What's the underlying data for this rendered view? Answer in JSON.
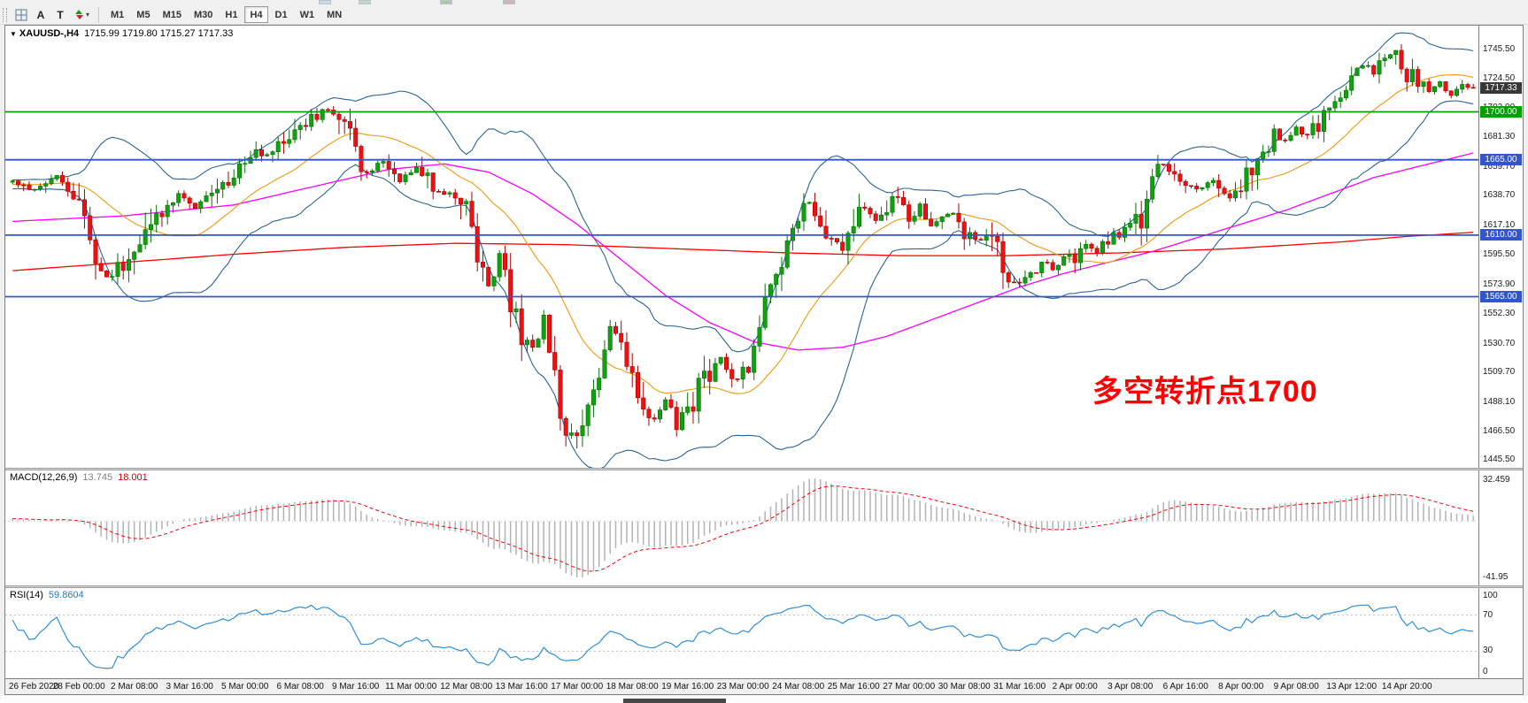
{
  "toolbar": {
    "text_label_glyph": "A",
    "text_tool_glyph": "T",
    "dropdown_caret": "▾",
    "timeframes": [
      {
        "label": "M1",
        "active": false
      },
      {
        "label": "M5",
        "active": false
      },
      {
        "label": "M15",
        "active": false
      },
      {
        "label": "M30",
        "active": false
      },
      {
        "label": "H1",
        "active": false
      },
      {
        "label": "H4",
        "active": true
      },
      {
        "label": "D1",
        "active": false
      },
      {
        "label": "W1",
        "active": false
      },
      {
        "label": "MN",
        "active": false
      }
    ]
  },
  "chart_ui": {
    "expander": "▼",
    "symbol_period": "XAUUSD-,H4",
    "ohlc": "1715.99 1719.80 1715.27 1717.33",
    "annotation": "多空转折点1700",
    "macd_name": "MACD(12,26,9)",
    "macd_value_main": "13.745",
    "macd_value_signal": "18.001",
    "rsi_name": "RSI(14)",
    "rsi_value": "59.8604"
  },
  "chart_data": {
    "type": "candlestick",
    "symbol": "XAUUSD-",
    "timeframe": "H4",
    "current_ohlc": {
      "open": 1715.99,
      "high": 1719.8,
      "low": 1715.27,
      "close": 1717.33
    },
    "current_price": 1717.33,
    "current_price_label": "1717.33",
    "candle_count": 265,
    "price_range_est": [
      1440,
      1763
    ],
    "annotation_color": "#ff0000",
    "y_axis_ticks": [
      {
        "label": "1745.50",
        "value": 1745.5
      },
      {
        "label": "1724.50",
        "value": 1724.5
      },
      {
        "label": "1702.90",
        "value": 1702.9
      },
      {
        "label": "1681.30",
        "value": 1681.3
      },
      {
        "label": "1659.70",
        "value": 1659.7
      },
      {
        "label": "1638.70",
        "value": 1638.7
      },
      {
        "label": "1617.10",
        "value": 1617.1
      },
      {
        "label": "1595.50",
        "value": 1595.5
      },
      {
        "label": "1573.90",
        "value": 1573.9
      },
      {
        "label": "1552.30",
        "value": 1552.3
      },
      {
        "label": "1530.70",
        "value": 1530.7
      },
      {
        "label": "1509.70",
        "value": 1509.7
      },
      {
        "label": "1488.10",
        "value": 1488.1
      },
      {
        "label": "1466.50",
        "value": 1466.5
      },
      {
        "label": "1445.50",
        "value": 1445.5
      }
    ],
    "x_axis_labels": [
      "26 Feb 2020",
      "28 Feb 00:00",
      "2 Mar 08:00",
      "3 Mar 16:00",
      "5 Mar 00:00",
      "6 Mar 08:00",
      "9 Mar 16:00",
      "11 Mar 00:00",
      "12 Mar 08:00",
      "13 Mar 16:00",
      "17 Mar 00:00",
      "18 Mar 08:00",
      "19 Mar 16:00",
      "23 Mar 00:00",
      "24 Mar 08:00",
      "25 Mar 16:00",
      "27 Mar 00:00",
      "30 Mar 08:00",
      "31 Mar 16:00",
      "2 Apr 00:00",
      "3 Apr 08:00",
      "6 Apr 16:00",
      "8 Apr 00:00",
      "9 Apr 08:00",
      "13 Apr 12:00",
      "14 Apr 20:00"
    ],
    "x_label_offset": 2,
    "x_label_step": 10,
    "hlines": [
      {
        "price": 1700,
        "label": "1700.00",
        "color": "#00a000"
      },
      {
        "price": 1665,
        "label": "1665.00",
        "color": "#3355cc"
      },
      {
        "price": 1610,
        "label": "1610.00",
        "color": "#3355cc"
      },
      {
        "price": 1565,
        "label": "1565.00",
        "color": "#3355cc"
      }
    ],
    "bollinger": {
      "period": 20,
      "deviation": 2
    },
    "ma_fast_period": 20,
    "price_close_waypoints": [
      [
        0,
        1650
      ],
      [
        4,
        1644
      ],
      [
        8,
        1652
      ],
      [
        12,
        1641
      ],
      [
        14,
        1600
      ],
      [
        16,
        1578
      ],
      [
        19,
        1585
      ],
      [
        22,
        1596
      ],
      [
        26,
        1622
      ],
      [
        30,
        1641
      ],
      [
        33,
        1631
      ],
      [
        36,
        1640
      ],
      [
        40,
        1655
      ],
      [
        44,
        1668
      ],
      [
        48,
        1674
      ],
      [
        51,
        1686
      ],
      [
        55,
        1698
      ],
      [
        58,
        1701
      ],
      [
        60,
        1688
      ],
      [
        62,
        1672
      ],
      [
        64,
        1656
      ],
      [
        67,
        1663
      ],
      [
        70,
        1650
      ],
      [
        73,
        1662
      ],
      [
        76,
        1645
      ],
      [
        79,
        1641
      ],
      [
        82,
        1634
      ],
      [
        84,
        1592
      ],
      [
        86,
        1572
      ],
      [
        88,
        1592
      ],
      [
        90,
        1562
      ],
      [
        92,
        1534
      ],
      [
        94,
        1522
      ],
      [
        96,
        1548
      ],
      [
        98,
        1504
      ],
      [
        100,
        1466
      ],
      [
        102,
        1455
      ],
      [
        104,
        1486
      ],
      [
        106,
        1512
      ],
      [
        108,
        1542
      ],
      [
        110,
        1526
      ],
      [
        112,
        1502
      ],
      [
        114,
        1484
      ],
      [
        116,
        1473
      ],
      [
        118,
        1492
      ],
      [
        120,
        1470
      ],
      [
        122,
        1483
      ],
      [
        124,
        1499
      ],
      [
        126,
        1512
      ],
      [
        128,
        1522
      ],
      [
        130,
        1504
      ],
      [
        132,
        1507
      ],
      [
        134,
        1528
      ],
      [
        136,
        1556
      ],
      [
        138,
        1584
      ],
      [
        140,
        1602
      ],
      [
        142,
        1622
      ],
      [
        144,
        1634
      ],
      [
        146,
        1622
      ],
      [
        148,
        1608
      ],
      [
        150,
        1594
      ],
      [
        152,
        1618
      ],
      [
        154,
        1632
      ],
      [
        156,
        1622
      ],
      [
        158,
        1634
      ],
      [
        160,
        1642
      ],
      [
        162,
        1622
      ],
      [
        164,
        1630
      ],
      [
        166,
        1618
      ],
      [
        168,
        1622
      ],
      [
        170,
        1626
      ],
      [
        172,
        1614
      ],
      [
        174,
        1606
      ],
      [
        176,
        1610
      ],
      [
        178,
        1598
      ],
      [
        180,
        1578
      ],
      [
        182,
        1574
      ],
      [
        184,
        1582
      ],
      [
        186,
        1592
      ],
      [
        188,
        1585
      ],
      [
        190,
        1591
      ],
      [
        192,
        1594
      ],
      [
        194,
        1604
      ],
      [
        196,
        1598
      ],
      [
        198,
        1606
      ],
      [
        200,
        1612
      ],
      [
        202,
        1614
      ],
      [
        204,
        1622
      ],
      [
        206,
        1648
      ],
      [
        208,
        1660
      ],
      [
        210,
        1654
      ],
      [
        212,
        1648
      ],
      [
        214,
        1642
      ],
      [
        216,
        1650
      ],
      [
        218,
        1644
      ],
      [
        220,
        1639
      ],
      [
        222,
        1648
      ],
      [
        224,
        1655
      ],
      [
        226,
        1672
      ],
      [
        228,
        1684
      ],
      [
        230,
        1678
      ],
      [
        232,
        1688
      ],
      [
        234,
        1684
      ],
      [
        236,
        1692
      ],
      [
        238,
        1705
      ],
      [
        240,
        1716
      ],
      [
        242,
        1726
      ],
      [
        244,
        1734
      ],
      [
        246,
        1730
      ],
      [
        248,
        1740
      ],
      [
        250,
        1745
      ],
      [
        251,
        1738
      ],
      [
        252,
        1728
      ],
      [
        254,
        1722
      ],
      [
        256,
        1714
      ],
      [
        258,
        1721
      ],
      [
        260,
        1713
      ],
      [
        262,
        1719
      ],
      [
        264,
        1717.33
      ]
    ],
    "ma_mid_waypoints": [
      [
        0,
        1620
      ],
      [
        20,
        1624
      ],
      [
        40,
        1632
      ],
      [
        55,
        1646
      ],
      [
        68,
        1658
      ],
      [
        78,
        1662
      ],
      [
        86,
        1656
      ],
      [
        94,
        1640
      ],
      [
        102,
        1618
      ],
      [
        110,
        1592
      ],
      [
        118,
        1566
      ],
      [
        126,
        1546
      ],
      [
        134,
        1532
      ],
      [
        142,
        1526
      ],
      [
        150,
        1528
      ],
      [
        158,
        1536
      ],
      [
        166,
        1548
      ],
      [
        174,
        1560
      ],
      [
        182,
        1572
      ],
      [
        190,
        1582
      ],
      [
        198,
        1590
      ],
      [
        206,
        1598
      ],
      [
        214,
        1608
      ],
      [
        222,
        1618
      ],
      [
        230,
        1628
      ],
      [
        238,
        1640
      ],
      [
        246,
        1652
      ],
      [
        256,
        1662
      ],
      [
        264,
        1670
      ]
    ],
    "ma_slow_waypoints": [
      [
        0,
        1584
      ],
      [
        20,
        1590
      ],
      [
        40,
        1596
      ],
      [
        60,
        1601
      ],
      [
        80,
        1604
      ],
      [
        100,
        1603
      ],
      [
        120,
        1600
      ],
      [
        140,
        1597
      ],
      [
        160,
        1595
      ],
      [
        180,
        1595
      ],
      [
        200,
        1597
      ],
      [
        220,
        1600
      ],
      [
        240,
        1605
      ],
      [
        252,
        1609
      ],
      [
        264,
        1612
      ]
    ],
    "macd": {
      "fast": 12,
      "slow": 26,
      "signal": 9,
      "current_main": 13.745,
      "current_signal": 18.001,
      "axis_max_label": "32.459",
      "axis_min_label": "-41.95"
    },
    "rsi": {
      "period": 14,
      "current": 59.8604,
      "levels": [
        70,
        30
      ],
      "axis": [
        {
          "label": "100",
          "value": 100
        },
        {
          "label": "70",
          "value": 70
        },
        {
          "label": "30",
          "value": 30
        },
        {
          "label": "0",
          "value": 0
        }
      ]
    },
    "colors": {
      "up": "#10a010",
      "up_dark": "#067006",
      "down": "#ee1111",
      "down_dark": "#aa0000",
      "bollinger": "#2a6496",
      "ma_fast": "#efa020",
      "ma_mid": "#ff00ff",
      "ma_slow": "#ff0000",
      "macd_hist": "#b3b3b3",
      "macd_signal": "#ff0000",
      "rsi": "#2f8fdc",
      "current_tag": "#383838",
      "grid_dotted": "#c9c9c9"
    }
  }
}
